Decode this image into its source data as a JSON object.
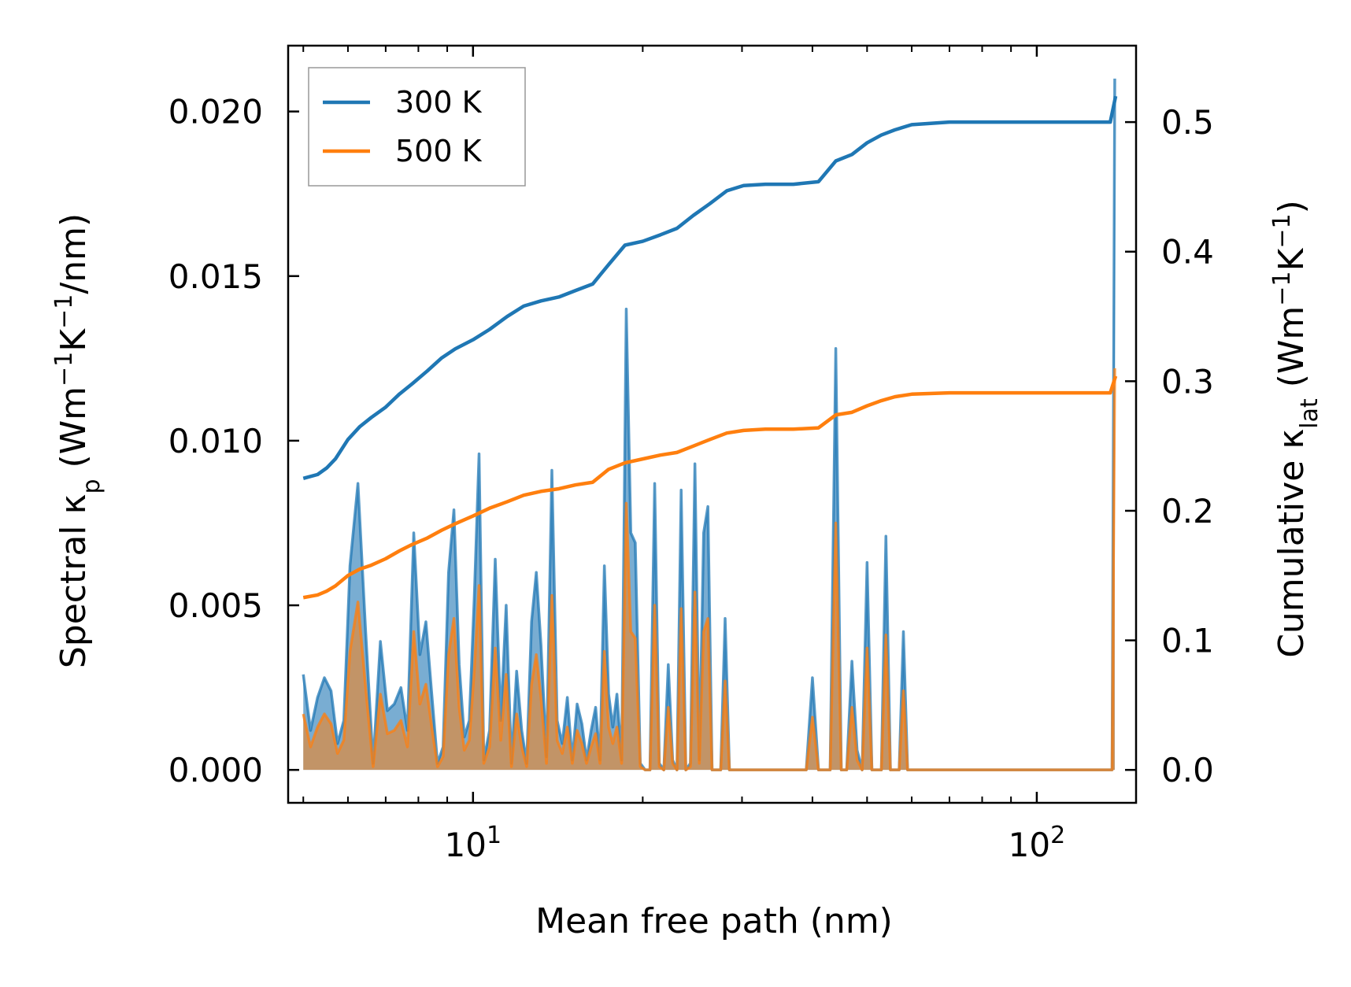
{
  "chart_data": {
    "type": "line",
    "xlabel": "Mean free path (nm)",
    "ylabel_left": {
      "base": "Spectral κ",
      "sub": "p",
      "unit": "(Wm",
      "unit_sup1": "−1",
      "unit_mid": "K",
      "unit_sup2": "−1",
      "unit_end": "/nm)"
    },
    "ylabel_right": {
      "base": "Cumulative κ",
      "sub": "lat",
      "unit": "(Wm",
      "unit_sup1": "−1",
      "unit_mid": "K",
      "unit_sup2": "−1",
      "unit_end": ")"
    },
    "x_scale": "log",
    "xlim": [
      4.7,
      150
    ],
    "ylim_left": [
      -0.001,
      0.022
    ],
    "ylim_right": [
      -0.0254,
      0.559
    ],
    "x_ticks": [
      {
        "value": 10,
        "base": "10",
        "exp": "1"
      },
      {
        "value": 100,
        "base": "10",
        "exp": "2"
      }
    ],
    "y_ticks_left": [
      {
        "value": 0.0,
        "label": "0.000"
      },
      {
        "value": 0.005,
        "label": "0.005"
      },
      {
        "value": 0.01,
        "label": "0.010"
      },
      {
        "value": 0.015,
        "label": "0.015"
      },
      {
        "value": 0.02,
        "label": "0.020"
      }
    ],
    "y_ticks_right": [
      {
        "value": 0.0,
        "label": "0.0"
      },
      {
        "value": 0.1,
        "label": "0.1"
      },
      {
        "value": 0.2,
        "label": "0.2"
      },
      {
        "value": 0.3,
        "label": "0.3"
      },
      {
        "value": 0.4,
        "label": "0.4"
      },
      {
        "value": 0.5,
        "label": "0.5"
      }
    ],
    "legend": {
      "position": "top-left",
      "entries": [
        {
          "label": "300 K",
          "color": "#1f77b4"
        },
        {
          "label": "500 K",
          "color": "#ff7f0e"
        }
      ]
    },
    "cumulative_series": [
      {
        "name": "300 K",
        "axis": "right",
        "color": "#1f77b4",
        "x": [
          5.0,
          5.3,
          5.5,
          5.7,
          6.0,
          6.3,
          6.6,
          7.0,
          7.4,
          7.8,
          8.3,
          8.8,
          9.3,
          10.0,
          10.7,
          11.5,
          12.3,
          13.2,
          14.2,
          15.2,
          16.3,
          17.4,
          18.6,
          20.0,
          21.5,
          23.0,
          24.6,
          26.3,
          28.2,
          30.2,
          33.0,
          37.0,
          41.0,
          44.0,
          47.0,
          50.0,
          53.0,
          56.0,
          60.0,
          70.0,
          90.0,
          110.0,
          135.0,
          138.0
        ],
        "y": [
          0.225,
          0.228,
          0.233,
          0.24,
          0.255,
          0.265,
          0.272,
          0.28,
          0.29,
          0.298,
          0.308,
          0.318,
          0.325,
          0.332,
          0.34,
          0.35,
          0.358,
          0.362,
          0.365,
          0.37,
          0.375,
          0.39,
          0.405,
          0.408,
          0.413,
          0.418,
          0.428,
          0.437,
          0.447,
          0.451,
          0.452,
          0.452,
          0.454,
          0.47,
          0.475,
          0.484,
          0.49,
          0.494,
          0.498,
          0.5,
          0.5,
          0.5,
          0.5,
          0.52
        ]
      },
      {
        "name": "500 K",
        "axis": "right",
        "color": "#ff7f0e",
        "x": [
          5.0,
          5.3,
          5.5,
          5.7,
          6.0,
          6.3,
          6.6,
          7.0,
          7.4,
          7.8,
          8.3,
          8.8,
          9.3,
          10.0,
          10.7,
          11.5,
          12.3,
          13.2,
          14.2,
          15.2,
          16.3,
          17.4,
          18.6,
          20.0,
          21.5,
          23.0,
          24.6,
          26.3,
          28.2,
          30.2,
          33.0,
          37.0,
          41.0,
          44.0,
          47.0,
          50.0,
          53.0,
          56.0,
          60.0,
          70.0,
          90.0,
          110.0,
          135.0,
          138.0
        ],
        "y": [
          0.133,
          0.135,
          0.138,
          0.142,
          0.15,
          0.155,
          0.158,
          0.163,
          0.169,
          0.174,
          0.179,
          0.185,
          0.19,
          0.196,
          0.202,
          0.207,
          0.212,
          0.215,
          0.217,
          0.22,
          0.222,
          0.232,
          0.237,
          0.24,
          0.243,
          0.245,
          0.25,
          0.255,
          0.26,
          0.262,
          0.263,
          0.263,
          0.264,
          0.274,
          0.276,
          0.281,
          0.285,
          0.288,
          0.29,
          0.291,
          0.291,
          0.291,
          0.291,
          0.304
        ]
      }
    ],
    "spectral_series": [
      {
        "name": "300 K spectral",
        "axis": "left",
        "color": "#1f77b4",
        "x": [
          5.0,
          5.15,
          5.3,
          5.45,
          5.6,
          5.75,
          5.9,
          6.05,
          6.25,
          6.45,
          6.65,
          6.85,
          7.05,
          7.25,
          7.45,
          7.65,
          7.85,
          8.05,
          8.25,
          8.45,
          8.65,
          8.85,
          9.05,
          9.25,
          9.45,
          9.65,
          9.85,
          10.05,
          10.25,
          10.45,
          10.7,
          10.95,
          11.2,
          11.45,
          11.7,
          11.95,
          12.2,
          12.45,
          12.7,
          12.95,
          13.2,
          13.5,
          13.8,
          14.1,
          14.4,
          14.7,
          15.0,
          15.3,
          15.6,
          15.9,
          16.2,
          16.5,
          16.8,
          17.1,
          17.4,
          17.7,
          18.0,
          18.35,
          18.7,
          19.05,
          19.4,
          19.8,
          20.2,
          20.6,
          21.0,
          21.4,
          21.8,
          22.2,
          22.6,
          23.0,
          23.4,
          23.85,
          24.3,
          24.75,
          25.2,
          25.65,
          26.1,
          26.55,
          27.0,
          27.5,
          28.0,
          28.5,
          29.0,
          29.5,
          30.0,
          30.5,
          31.0,
          33.0,
          35.0,
          37.0,
          39.0,
          40.0,
          41.0,
          42.0,
          43.0,
          44.0,
          45.0,
          46.0,
          47.0,
          48.0,
          49.0,
          50.0,
          51.0,
          52.0,
          53.0,
          54.0,
          55.0,
          56.0,
          57.0,
          58.0,
          59.0,
          60.0,
          61.0,
          62.0,
          65.0,
          80.0,
          100.0,
          120.0,
          134.0,
          136.0,
          137.5
        ],
        "y": [
          0.0029,
          0.0012,
          0.0022,
          0.0028,
          0.0024,
          0.0008,
          0.0015,
          0.0062,
          0.0087,
          0.0042,
          0.0002,
          0.0039,
          0.0018,
          0.002,
          0.0025,
          0.0012,
          0.0072,
          0.0035,
          0.0045,
          0.0023,
          0.0002,
          0.0007,
          0.006,
          0.0079,
          0.0032,
          0.001,
          0.0015,
          0.0052,
          0.0096,
          0.0003,
          0.0012,
          0.0064,
          0.0015,
          0.005,
          0.0002,
          0.003,
          0.0012,
          0.0002,
          0.0045,
          0.006,
          0.0038,
          0.0004,
          0.0091,
          0.0015,
          0.0008,
          0.0022,
          0.0003,
          0.002,
          0.0014,
          0.0003,
          0.0012,
          0.0019,
          0.0003,
          0.0062,
          0.0023,
          0.0013,
          0.0023,
          0.0003,
          0.014,
          0.0072,
          0.0069,
          0.0002,
          0.0,
          0.0,
          0.0087,
          0.0002,
          0.0,
          0.0032,
          0.0003,
          0.0,
          0.0085,
          0.0,
          0.0002,
          0.0093,
          0.0003,
          0.0072,
          0.008,
          0.0,
          0.0,
          0.0,
          0.0046,
          0.0,
          0.0,
          0.0,
          0.0,
          0.0,
          0.0,
          0.0,
          0.0,
          0.0,
          0.0,
          0.0028,
          0.0,
          0.0,
          0.0,
          0.0128,
          0.0,
          0.0,
          0.0033,
          0.0006,
          0.0,
          0.0063,
          0.0,
          0.0,
          0.0,
          0.0071,
          0.0,
          0.0,
          0.0,
          0.0042,
          0.0,
          0.0,
          0.0,
          0.0,
          0.0,
          0.0,
          0.0,
          0.0,
          0.0,
          0.0,
          0.021
        ]
      },
      {
        "name": "500 K spectral",
        "axis": "left",
        "color": "#ff7f0e",
        "x": [
          5.0,
          5.15,
          5.3,
          5.45,
          5.6,
          5.75,
          5.9,
          6.05,
          6.25,
          6.45,
          6.65,
          6.85,
          7.05,
          7.25,
          7.45,
          7.65,
          7.85,
          8.05,
          8.25,
          8.45,
          8.65,
          8.85,
          9.05,
          9.25,
          9.45,
          9.65,
          9.85,
          10.05,
          10.25,
          10.45,
          10.7,
          10.95,
          11.2,
          11.45,
          11.7,
          11.95,
          12.2,
          12.45,
          12.7,
          12.95,
          13.2,
          13.5,
          13.8,
          14.1,
          14.4,
          14.7,
          15.0,
          15.3,
          15.6,
          15.9,
          16.2,
          16.5,
          16.8,
          17.1,
          17.4,
          17.7,
          18.0,
          18.35,
          18.7,
          19.05,
          19.4,
          19.8,
          20.2,
          20.6,
          21.0,
          21.4,
          21.8,
          22.2,
          22.6,
          23.0,
          23.4,
          23.85,
          24.3,
          24.75,
          25.2,
          25.65,
          26.1,
          26.55,
          27.0,
          27.5,
          28.0,
          28.5,
          29.0,
          29.5,
          30.0,
          30.5,
          31.0,
          33.0,
          35.0,
          37.0,
          39.0,
          40.0,
          41.0,
          42.0,
          43.0,
          44.0,
          45.0,
          46.0,
          47.0,
          48.0,
          49.0,
          50.0,
          51.0,
          52.0,
          53.0,
          54.0,
          55.0,
          56.0,
          57.0,
          58.0,
          59.0,
          60.0,
          61.0,
          62.0,
          65.0,
          80.0,
          100.0,
          120.0,
          134.0,
          136.0,
          137.5
        ],
        "y": [
          0.0017,
          0.0007,
          0.0013,
          0.0017,
          0.0014,
          0.0005,
          0.0009,
          0.0036,
          0.0051,
          0.0025,
          0.0001,
          0.0023,
          0.0011,
          0.0012,
          0.0015,
          0.0007,
          0.0042,
          0.002,
          0.0026,
          0.0013,
          0.0001,
          0.0004,
          0.0035,
          0.0046,
          0.0019,
          0.0006,
          0.0009,
          0.003,
          0.0056,
          0.0002,
          0.0007,
          0.0037,
          0.0009,
          0.0029,
          0.0001,
          0.0017,
          0.0007,
          0.0001,
          0.0026,
          0.0035,
          0.0022,
          0.0002,
          0.0053,
          0.0009,
          0.0005,
          0.0013,
          0.0002,
          0.0012,
          0.0008,
          0.0002,
          0.0007,
          0.0011,
          0.0002,
          0.0036,
          0.0013,
          0.0008,
          0.0013,
          0.0002,
          0.0081,
          0.0042,
          0.004,
          0.0001,
          0.0,
          0.0,
          0.005,
          0.0001,
          0.0,
          0.0019,
          0.0002,
          0.0,
          0.0049,
          0.0,
          0.0001,
          0.0054,
          0.0002,
          0.0042,
          0.0046,
          0.0,
          0.0,
          0.0,
          0.0027,
          0.0,
          0.0,
          0.0,
          0.0,
          0.0,
          0.0,
          0.0,
          0.0,
          0.0,
          0.0,
          0.0016,
          0.0,
          0.0,
          0.0,
          0.0075,
          0.0,
          0.0,
          0.0019,
          0.0003,
          0.0,
          0.0037,
          0.0,
          0.0,
          0.0,
          0.0041,
          0.0,
          0.0,
          0.0,
          0.0024,
          0.0,
          0.0,
          0.0,
          0.0,
          0.0,
          0.0,
          0.0,
          0.0,
          0.0,
          0.0,
          0.0122
        ]
      }
    ]
  }
}
